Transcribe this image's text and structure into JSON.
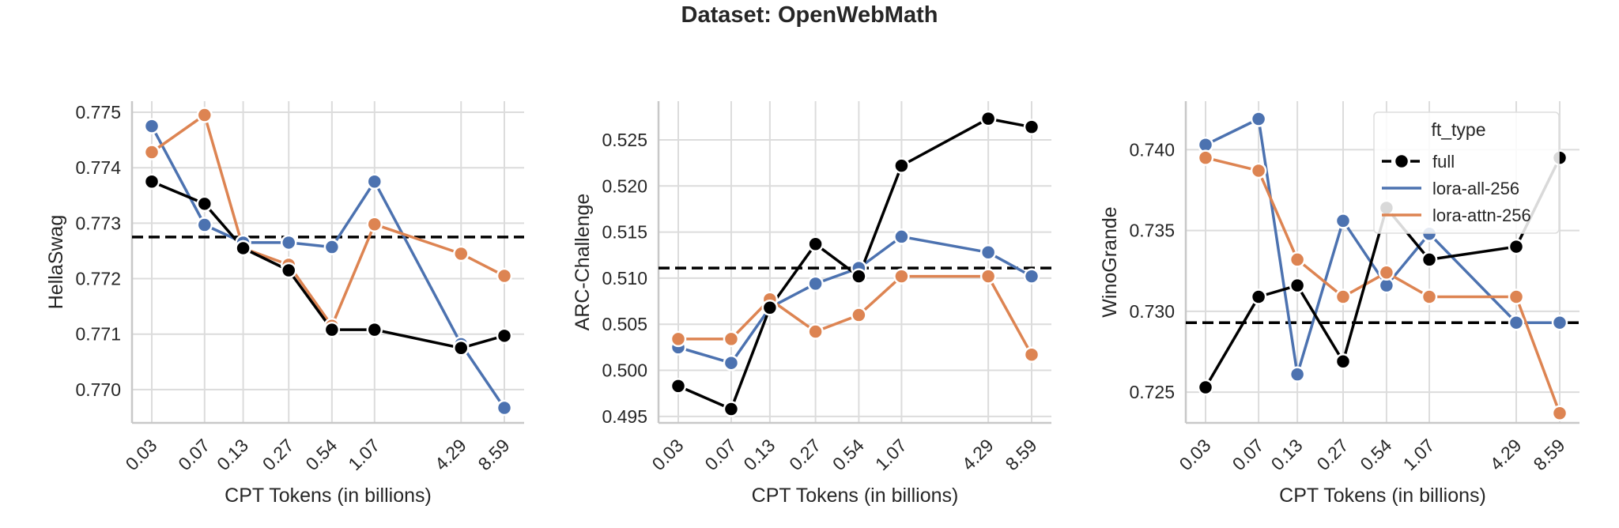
{
  "suptitle": "Dataset: OpenWebMath",
  "legend": {
    "title": "ft_type",
    "placement": "upper-right of third panel",
    "entries": [
      {
        "name": "full",
        "color": "#000000",
        "marker": "circle",
        "linestyle": "dashed"
      },
      {
        "name": "lora-all-256",
        "color": "#4c72b0",
        "linestyle": "solid"
      },
      {
        "name": "lora-attn-256",
        "color": "#dd8452",
        "linestyle": "solid"
      }
    ]
  },
  "chart_data": [
    {
      "type": "line",
      "xlabel": "CPT Tokens (in billions)",
      "ylabel": "HellaSwag",
      "x": [
        0.03,
        0.07,
        0.13,
        0.27,
        0.54,
        1.07,
        4.29,
        8.59
      ],
      "x_tick_labels": [
        "0.03",
        "0.07",
        "0.13",
        "0.27",
        "0.54",
        "1.07",
        "4.29",
        "8.59"
      ],
      "x_scale": "log",
      "ylim": [
        0.7694,
        0.7752
      ],
      "y_ticks": [
        0.77,
        0.771,
        0.772,
        0.773,
        0.774,
        0.775
      ],
      "y_tick_labels": [
        "0.770",
        "0.771",
        "0.772",
        "0.773",
        "0.774",
        "0.775"
      ],
      "grid": true,
      "baseline": 0.77275,
      "series": [
        {
          "name": "full",
          "color": "#000000",
          "values": [
            0.77375,
            0.77335,
            0.77255,
            0.77215,
            0.77108,
            0.77108,
            0.77075,
            0.77097
          ]
        },
        {
          "name": "lora-all-256",
          "color": "#4c72b0",
          "values": [
            0.77475,
            0.77297,
            0.77265,
            0.77265,
            0.77257,
            0.77375,
            0.77082,
            0.76967
          ]
        },
        {
          "name": "lora-attn-256",
          "color": "#dd8452",
          "values": [
            0.77428,
            0.77495,
            0.77255,
            0.77225,
            0.77115,
            0.77298,
            0.77245,
            0.77205
          ]
        }
      ]
    },
    {
      "type": "line",
      "xlabel": "CPT Tokens (in billions)",
      "ylabel": "ARC-Challenge",
      "x": [
        0.03,
        0.07,
        0.13,
        0.27,
        0.54,
        1.07,
        4.29,
        8.59
      ],
      "x_tick_labels": [
        "0.03",
        "0.07",
        "0.13",
        "0.27",
        "0.54",
        "1.07",
        "4.29",
        "8.59"
      ],
      "x_scale": "log",
      "ylim": [
        0.4943,
        0.5292
      ],
      "y_ticks": [
        0.495,
        0.5,
        0.505,
        0.51,
        0.515,
        0.52,
        0.525
      ],
      "y_tick_labels": [
        "0.495",
        "0.500",
        "0.505",
        "0.510",
        "0.515",
        "0.520",
        "0.525"
      ],
      "grid": true,
      "baseline": 0.5111,
      "series": [
        {
          "name": "full",
          "color": "#000000",
          "values": [
            0.4983,
            0.4958,
            0.5068,
            0.5137,
            0.5102,
            0.5222,
            0.5273,
            0.5264
          ]
        },
        {
          "name": "lora-all-256",
          "color": "#4c72b0",
          "values": [
            0.5025,
            0.5008,
            0.5068,
            0.5094,
            0.5111,
            0.5145,
            0.5128,
            0.5102
          ]
        },
        {
          "name": "lora-attn-256",
          "color": "#dd8452",
          "values": [
            0.5034,
            0.5034,
            0.5077,
            0.5042,
            0.506,
            0.5102,
            0.5102,
            0.5017
          ]
        }
      ]
    },
    {
      "type": "line",
      "xlabel": "CPT Tokens (in billions)",
      "ylabel": "WinoGrande",
      "x": [
        0.03,
        0.07,
        0.13,
        0.27,
        0.54,
        1.07,
        4.29,
        8.59
      ],
      "x_tick_labels": [
        "0.03",
        "0.07",
        "0.13",
        "0.27",
        "0.54",
        "1.07",
        "4.29",
        "8.59"
      ],
      "x_scale": "log",
      "ylim": [
        0.7231,
        0.743
      ],
      "y_ticks": [
        0.725,
        0.73,
        0.735,
        0.74
      ],
      "y_tick_labels": [
        "0.725",
        "0.730",
        "0.735",
        "0.740"
      ],
      "grid": true,
      "baseline": 0.7293,
      "series": [
        {
          "name": "full",
          "color": "#000000",
          "values": [
            0.7253,
            0.7309,
            0.7316,
            0.7269,
            0.7364,
            0.7332,
            0.734,
            0.7395
          ]
        },
        {
          "name": "lora-all-256",
          "color": "#4c72b0",
          "values": [
            0.7403,
            0.7419,
            0.7261,
            0.7356,
            0.7316,
            0.7348,
            0.7293,
            0.7293
          ]
        },
        {
          "name": "lora-attn-256",
          "color": "#dd8452",
          "values": [
            0.7395,
            0.7387,
            0.7332,
            0.7309,
            0.7324,
            0.7309,
            0.7309,
            0.7237
          ]
        }
      ]
    }
  ]
}
